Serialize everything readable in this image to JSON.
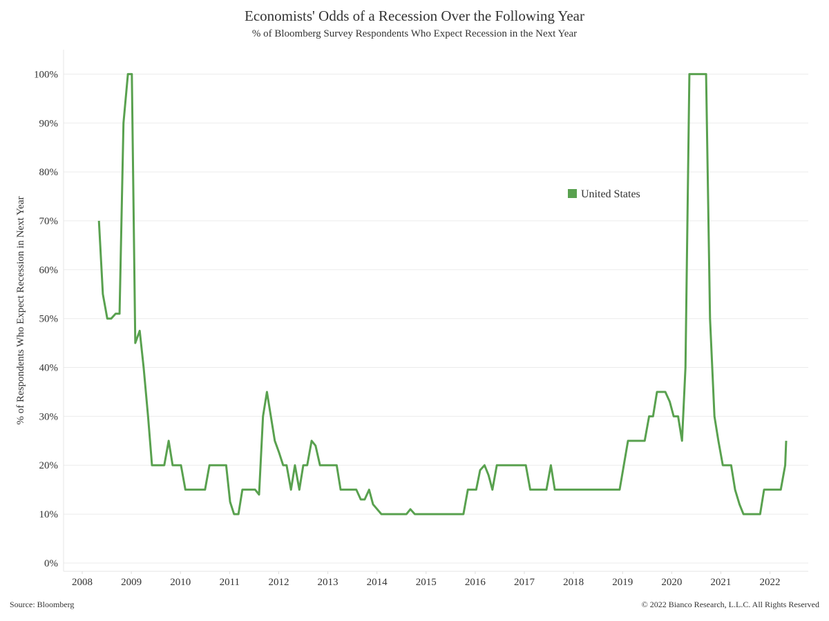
{
  "chart_data": {
    "type": "line",
    "title": "Economists' Odds of a Recession Over the Following Year",
    "subtitle": "% of Bloomberg Survey Respondents Who Expect Recession in the Next Year",
    "y_label": "% of Respondents Who Expect Recession in Next Year",
    "source": "Source: Bloomberg",
    "copyright": "© 2022 Bianco Research, L.L.C. All Rights Reserved",
    "legend_position": "upper right",
    "grid": true,
    "xlim": [
      2007.62,
      2022.78
    ],
    "xticks": [
      2008,
      2009,
      2010,
      2011,
      2012,
      2013,
      2014,
      2015,
      2016,
      2017,
      2018,
      2019,
      2020,
      2021,
      2022
    ],
    "ylim": [
      -1.7,
      105
    ],
    "yticks": [
      {
        "value": 0,
        "label": "0%"
      },
      {
        "value": 10,
        "label": "10%"
      },
      {
        "value": 20,
        "label": "20%"
      },
      {
        "value": 30,
        "label": "30%"
      },
      {
        "value": 40,
        "label": "40%"
      },
      {
        "value": 50,
        "label": "50%"
      },
      {
        "value": 60,
        "label": "60%"
      },
      {
        "value": 70,
        "label": "70%"
      },
      {
        "value": 80,
        "label": "80%"
      },
      {
        "value": 90,
        "label": "90%"
      },
      {
        "value": 100,
        "label": "100%"
      }
    ],
    "x": [
      2008.34,
      2008.42,
      2008.51,
      2008.59,
      2008.68,
      2008.76,
      2008.84,
      2008.93,
      2009.01,
      2009.08,
      2009.17,
      2009.25,
      2009.34,
      2009.42,
      2009.67,
      2009.76,
      2009.84,
      2010.01,
      2010.1,
      2010.5,
      2010.59,
      2010.93,
      2011.01,
      2011.09,
      2011.18,
      2011.26,
      2011.52,
      2011.6,
      2011.68,
      2011.76,
      2011.84,
      2011.92,
      2012.01,
      2012.09,
      2012.16,
      2012.25,
      2012.33,
      2012.42,
      2012.5,
      2012.58,
      2012.67,
      2012.75,
      2012.84,
      2013.18,
      2013.26,
      2013.58,
      2013.67,
      2013.75,
      2013.84,
      2013.92,
      2014.09,
      2014.6,
      2014.68,
      2014.77,
      2015.76,
      2015.85,
      2016.02,
      2016.1,
      2016.19,
      2016.27,
      2016.35,
      2016.44,
      2017.03,
      2017.12,
      2017.45,
      2017.54,
      2017.62,
      2018.94,
      2019.11,
      2019.45,
      2019.54,
      2019.62,
      2019.7,
      2019.87,
      2019.96,
      2020.04,
      2020.13,
      2020.21,
      2020.28,
      2020.36,
      2020.7,
      2020.78,
      2020.87,
      2020.95,
      2021.04,
      2021.21,
      2021.29,
      2021.38,
      2021.46,
      2021.8,
      2021.88,
      2022.22,
      2022.31,
      2022.33
    ],
    "series": [
      {
        "name": "United States",
        "color": "#59a14f",
        "values": [
          70,
          55,
          50,
          50,
          51,
          51,
          90,
          100,
          100,
          45,
          47.5,
          40,
          30,
          20,
          20,
          25,
          20,
          20,
          15,
          15,
          20,
          20,
          12.5,
          10,
          10,
          15,
          15,
          14,
          30,
          35,
          30,
          25,
          22.5,
          20,
          20,
          15,
          20,
          15,
          20,
          20,
          25,
          24,
          20,
          20,
          15,
          15,
          13,
          13,
          15,
          12,
          10,
          10,
          11,
          10,
          10,
          15,
          15,
          19,
          20,
          18,
          15,
          20,
          20,
          15,
          15,
          20,
          15,
          15,
          25,
          25,
          30,
          30,
          35,
          35,
          33,
          30,
          30,
          25,
          40,
          100,
          100,
          50,
          30,
          25,
          20,
          20,
          15,
          12,
          10,
          10,
          15,
          15,
          20,
          25
        ]
      }
    ]
  }
}
